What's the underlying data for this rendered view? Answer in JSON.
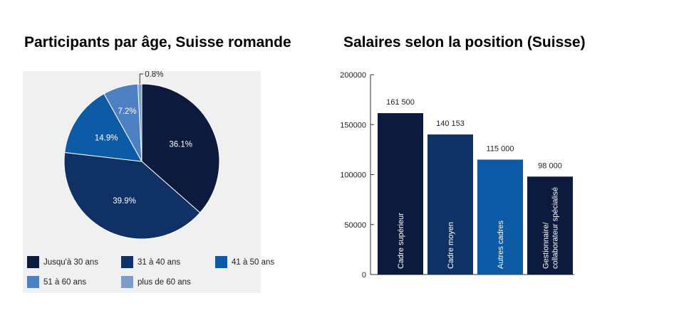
{
  "titles": {
    "left": "Participants par âge, Suisse romande",
    "right": "Salaires selon la position (Suisse)"
  },
  "chart_data": [
    {
      "type": "pie",
      "title": "Participants par âge, Suisse romande",
      "series": [
        {
          "name": "Jusqu'à 30 ans",
          "value": 36.1,
          "label": "36.1%",
          "color": "#0c1a3d"
        },
        {
          "name": "31 à 40 ans",
          "value": 39.9,
          "label": "39.9%",
          "color": "#0f3166"
        },
        {
          "name": "41 à 50 ans",
          "value": 14.9,
          "label": "14.9%",
          "color": "#0d5aa6"
        },
        {
          "name": "51 à 60 ans",
          "value": 7.2,
          "label": "7.2%",
          "color": "#4d80c2"
        },
        {
          "name": "plus de 60 ans",
          "value": 0.8,
          "label": "0.8%",
          "color": "#7d9dc4"
        }
      ],
      "legend_placement": "bottom"
    },
    {
      "type": "bar",
      "title": "Salaires selon la position (Suisse)",
      "categories": [
        "Cadre supérieur",
        "Cadre moyen",
        "Autres cadres",
        "Gestionnaire/ collaborateur spécialisé"
      ],
      "category_lines": [
        [
          "Cadre supérieur"
        ],
        [
          "Cadre moyen"
        ],
        [
          "Autres cadres"
        ],
        [
          "Gestionnaire/",
          "collaborateur spécialisé"
        ]
      ],
      "values": [
        161500,
        140153,
        115000,
        98000
      ],
      "value_labels": [
        "161 500",
        "140 153",
        "115 000",
        "98 000"
      ],
      "colors": [
        "#0c1a3d",
        "#0f3166",
        "#0d5aa6",
        "#0c1a3d"
      ],
      "ylim": [
        0,
        200000
      ],
      "yticks": [
        0,
        50000,
        100000,
        150000,
        200000
      ],
      "ytick_labels": [
        "0",
        "50000",
        "100000",
        "150000",
        "200000"
      ],
      "grid": false
    }
  ]
}
